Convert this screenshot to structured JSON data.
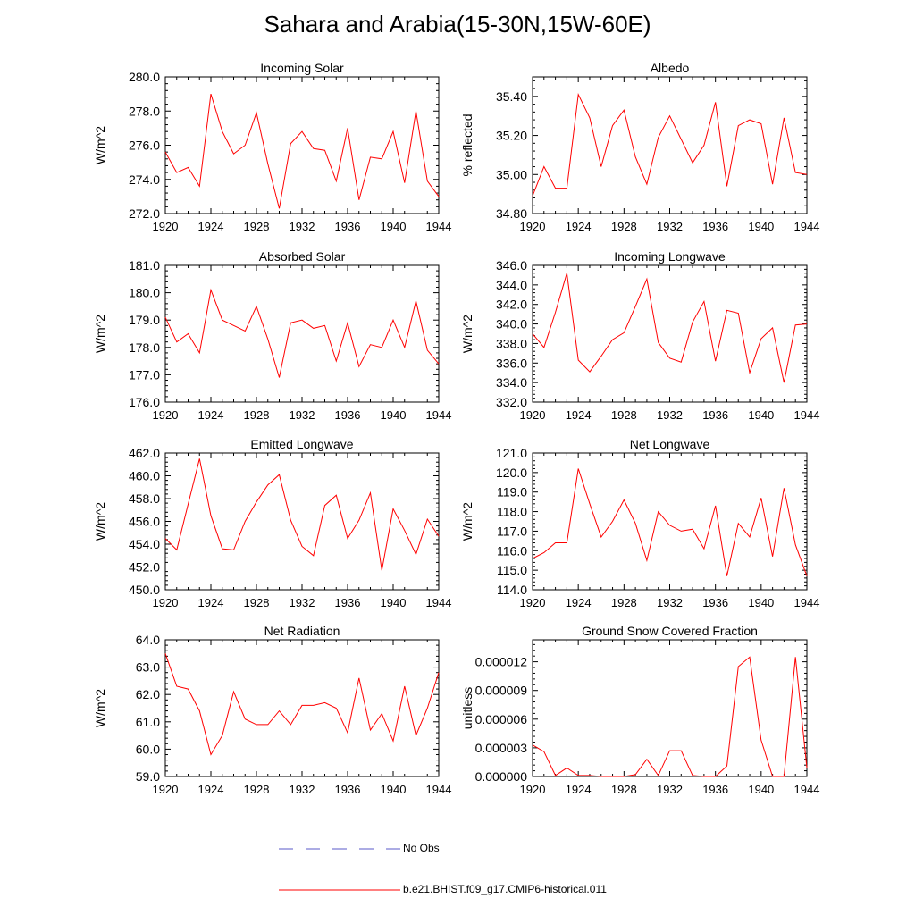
{
  "title": "Sahara and Arabia(15-30N,15W-60E)",
  "legend": {
    "entries": [
      {
        "label": "No Obs",
        "color": "#5a5ac8",
        "style": "dashed"
      },
      {
        "label": "b.e21.BHIST.f09_g17.CMIP6-historical.011",
        "color": "#ff0000",
        "style": "solid"
      }
    ]
  },
  "colors": {
    "series": "#ff0000",
    "axis": "#000000"
  },
  "chart_data": [
    {
      "type": "line",
      "title": "Incoming Solar",
      "ylabel": "W/m^2",
      "xlabel": "",
      "xlim": [
        1920,
        1944
      ],
      "ylim": [
        272.0,
        280.0
      ],
      "xticks": [
        "1920",
        "1924",
        "1928",
        "1932",
        "1936",
        "1940",
        "1944"
      ],
      "yticks": [
        "272.0",
        "274.0",
        "276.0",
        "278.0",
        "280.0"
      ],
      "series": [
        {
          "values": [
            275.6,
            274.4,
            274.7,
            273.6,
            279.0,
            276.8,
            275.5,
            276.0,
            277.9,
            274.9,
            272.3,
            276.1,
            276.8,
            275.8,
            275.7,
            273.9,
            277.0,
            272.8,
            275.3,
            275.2,
            276.8,
            273.8,
            278.0,
            273.9,
            273.0
          ]
        }
      ]
    },
    {
      "type": "line",
      "title": "Albedo",
      "ylabel": "% reflected",
      "xlabel": "",
      "xlim": [
        1920,
        1944
      ],
      "ylim": [
        34.8,
        35.5
      ],
      "xticks": [
        "1920",
        "1924",
        "1928",
        "1932",
        "1936",
        "1940",
        "1944"
      ],
      "yticks": [
        "34.80",
        "35.00",
        "35.20",
        "35.40"
      ],
      "series": [
        {
          "values": [
            34.89,
            35.04,
            34.93,
            34.93,
            35.41,
            35.29,
            35.04,
            35.25,
            35.33,
            35.09,
            34.95,
            35.19,
            35.3,
            35.18,
            35.06,
            35.15,
            35.37,
            34.94,
            35.25,
            35.28,
            35.26,
            34.95,
            35.29,
            35.01,
            35.0
          ]
        }
      ]
    },
    {
      "type": "line",
      "title": "Absorbed Solar",
      "ylabel": "W/m^2",
      "xlabel": "",
      "xlim": [
        1920,
        1944
      ],
      "ylim": [
        176.0,
        181.0
      ],
      "xticks": [
        "1920",
        "1924",
        "1928",
        "1932",
        "1936",
        "1940",
        "1944"
      ],
      "yticks": [
        "176.0",
        "177.0",
        "178.0",
        "179.0",
        "180.0",
        "181.0"
      ],
      "series": [
        {
          "values": [
            179.1,
            178.2,
            178.5,
            177.8,
            180.1,
            179.0,
            178.8,
            178.6,
            179.5,
            178.3,
            176.9,
            178.9,
            179.0,
            178.7,
            178.8,
            177.5,
            178.9,
            177.3,
            178.1,
            178.0,
            179.0,
            178.0,
            179.7,
            177.9,
            177.4
          ]
        }
      ]
    },
    {
      "type": "line",
      "title": "Incoming Longwave",
      "ylabel": "W/m^2",
      "xlabel": "",
      "xlim": [
        1920,
        1944
      ],
      "ylim": [
        332.0,
        346.0
      ],
      "xticks": [
        "1920",
        "1924",
        "1928",
        "1932",
        "1936",
        "1940",
        "1944"
      ],
      "yticks": [
        "332.0",
        "334.0",
        "336.0",
        "338.0",
        "340.0",
        "342.0",
        "344.0",
        "346.0"
      ],
      "series": [
        {
          "values": [
            339.0,
            337.6,
            341.2,
            345.2,
            336.3,
            335.1,
            336.7,
            338.4,
            339.1,
            341.8,
            344.6,
            338.1,
            336.5,
            336.1,
            340.2,
            342.3,
            336.2,
            341.4,
            341.1,
            335.0,
            338.5,
            339.6,
            334.0,
            339.9,
            340.0
          ]
        }
      ]
    },
    {
      "type": "line",
      "title": "Emitted Longwave",
      "ylabel": "W/m^2",
      "xlabel": "",
      "xlim": [
        1920,
        1944
      ],
      "ylim": [
        450.0,
        462.0
      ],
      "xticks": [
        "1920",
        "1924",
        "1928",
        "1932",
        "1936",
        "1940",
        "1944"
      ],
      "yticks": [
        "450.0",
        "452.0",
        "454.0",
        "456.0",
        "458.0",
        "460.0",
        "462.0"
      ],
      "series": [
        {
          "values": [
            454.5,
            453.5,
            457.5,
            461.5,
            456.5,
            453.6,
            453.5,
            456.0,
            457.7,
            459.2,
            460.1,
            456.1,
            453.8,
            453.0,
            457.4,
            458.3,
            454.5,
            456.1,
            458.5,
            451.7,
            457.1,
            455.2,
            453.1,
            456.2,
            454.7
          ]
        }
      ]
    },
    {
      "type": "line",
      "title": "Net Longwave",
      "ylabel": "W/m^2",
      "xlabel": "",
      "xlim": [
        1920,
        1944
      ],
      "ylim": [
        114.0,
        121.0
      ],
      "xticks": [
        "1920",
        "1924",
        "1928",
        "1932",
        "1936",
        "1940",
        "1944"
      ],
      "yticks": [
        "114.0",
        "115.0",
        "116.0",
        "117.0",
        "118.0",
        "119.0",
        "120.0",
        "121.0"
      ],
      "series": [
        {
          "values": [
            115.6,
            115.9,
            116.4,
            116.4,
            120.2,
            118.4,
            116.7,
            117.5,
            118.6,
            117.4,
            115.5,
            118.0,
            117.3,
            117.0,
            117.1,
            116.1,
            118.3,
            114.7,
            117.4,
            116.7,
            118.7,
            115.7,
            119.2,
            116.3,
            114.7
          ]
        }
      ]
    },
    {
      "type": "line",
      "title": "Net Radiation",
      "ylabel": "W/m^2",
      "xlabel": "",
      "xlim": [
        1920,
        1944
      ],
      "ylim": [
        59.0,
        64.0
      ],
      "xticks": [
        "1920",
        "1924",
        "1928",
        "1932",
        "1936",
        "1940",
        "1944"
      ],
      "yticks": [
        "59.0",
        "60.0",
        "61.0",
        "62.0",
        "63.0",
        "64.0"
      ],
      "series": [
        {
          "values": [
            63.5,
            62.3,
            62.2,
            61.4,
            59.8,
            60.5,
            62.1,
            61.1,
            60.9,
            60.9,
            61.4,
            60.9,
            61.6,
            61.6,
            61.7,
            61.5,
            60.6,
            62.6,
            60.7,
            61.3,
            60.3,
            62.3,
            60.5,
            61.5,
            62.8
          ]
        }
      ]
    },
    {
      "type": "line",
      "title": "Ground Snow Covered Fraction",
      "ylabel": "unitless",
      "xlabel": "",
      "xlim": [
        1920,
        1944
      ],
      "ylim": [
        0.0,
        1.43e-05
      ],
      "xticks": [
        "1920",
        "1924",
        "1928",
        "1932",
        "1936",
        "1940",
        "1944"
      ],
      "yticks": [
        "0.000000",
        "0.000003",
        "0.000006",
        "0.000009",
        "0.000012"
      ],
      "series": [
        {
          "values": [
            3.3e-06,
            2.6e-06,
            1e-07,
            9e-07,
            1e-07,
            1e-07,
            0.0,
            0.0,
            0.0,
            2e-07,
            1.8e-06,
            1e-07,
            2.7e-06,
            2.7e-06,
            1e-07,
            0.0,
            0.0,
            1.1e-06,
            1.15e-05,
            1.25e-05,
            3.8e-06,
            0.0,
            0.0,
            1.25e-05,
            9e-07
          ]
        }
      ]
    }
  ]
}
